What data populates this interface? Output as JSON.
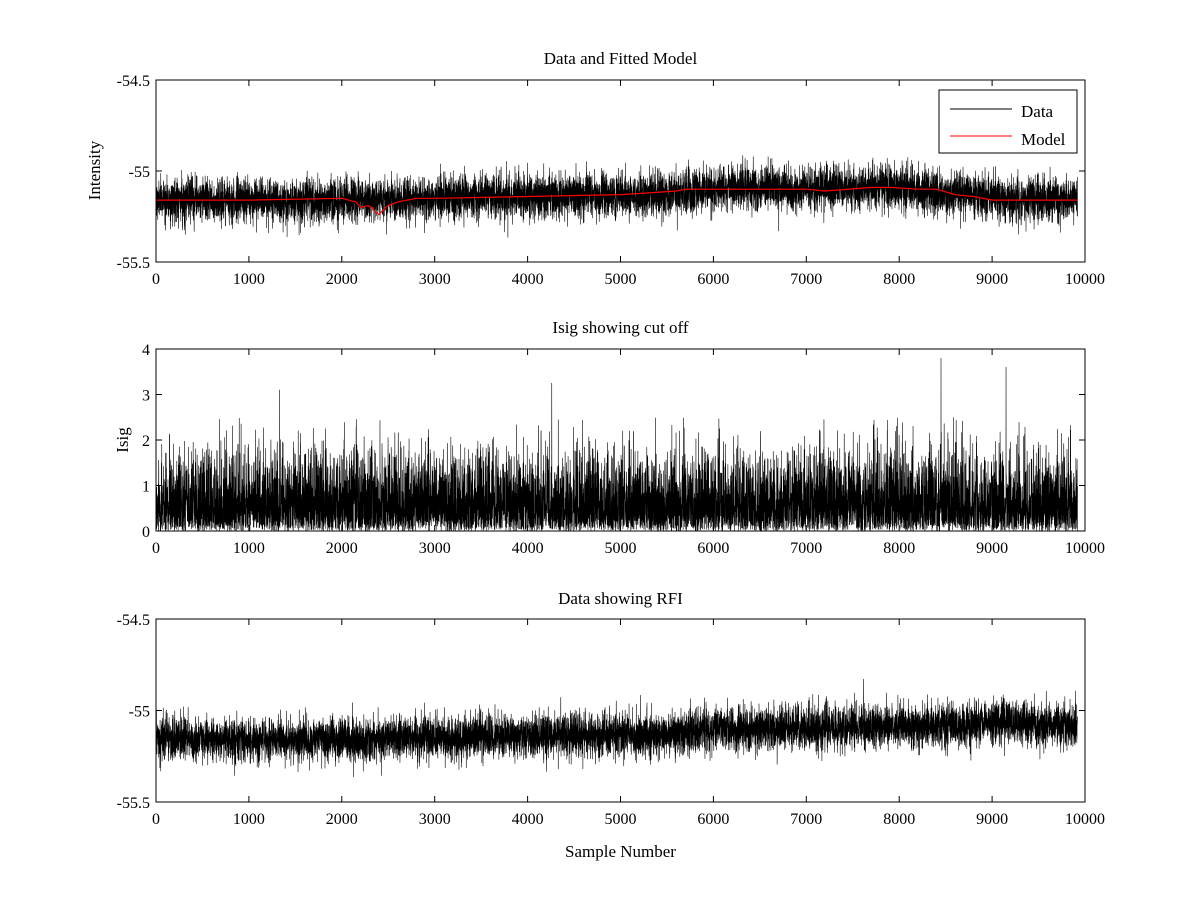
{
  "figure": {
    "background": "#ffffff"
  },
  "chart_data": [
    {
      "type": "line",
      "title": "Data and Fitted Model",
      "xlabel": "",
      "ylabel": "Intensity",
      "xlim": [
        0,
        10000
      ],
      "ylim": [
        -55.5,
        -54.5
      ],
      "xticks": [
        0,
        1000,
        2000,
        3000,
        4000,
        5000,
        6000,
        7000,
        8000,
        9000,
        10000
      ],
      "xtick_labels": [
        "0",
        "1000",
        "2000",
        "3000",
        "4000",
        "5000",
        "6000",
        "7000",
        "8000",
        "9000",
        "10000"
      ],
      "yticks": [
        -55.5,
        -55,
        -54.5
      ],
      "ytick_labels": [
        "-55.5",
        "-55",
        "-54.5"
      ],
      "grid": false,
      "legend": {
        "placement": "top-right",
        "entries": [
          "Data",
          "Model"
        ]
      },
      "series": [
        {
          "name": "Data",
          "color": "#000000",
          "kind": "noise",
          "n_samples": 9920,
          "baseline": {
            "x": [
              0,
              2000,
              4000,
              5400,
              6000,
              8000,
              9000,
              9920
            ],
            "y": [
              -55.16,
              -55.16,
              -55.14,
              -55.13,
              -55.1,
              -55.09,
              -55.15,
              -55.16
            ]
          },
          "noise_sd": 0.06,
          "typical_range": [
            -55.45,
            -54.85
          ]
        },
        {
          "name": "Model",
          "color": "#ff0000",
          "x": [
            0,
            1000,
            2000,
            2150,
            2200,
            2280,
            2320,
            2350,
            2400,
            2450,
            2500,
            2600,
            2800,
            3000,
            4000,
            5000,
            5300,
            5600,
            5700,
            6000,
            7000,
            7200,
            7700,
            7900,
            8200,
            8400,
            8600,
            8800,
            9000,
            9200,
            9920
          ],
          "y": [
            -55.16,
            -55.16,
            -55.15,
            -55.17,
            -55.2,
            -55.19,
            -55.2,
            -55.22,
            -55.24,
            -55.21,
            -55.19,
            -55.17,
            -55.15,
            -55.15,
            -55.14,
            -55.13,
            -55.12,
            -55.11,
            -55.1,
            -55.1,
            -55.1,
            -55.11,
            -55.09,
            -55.09,
            -55.1,
            -55.1,
            -55.13,
            -55.14,
            -55.16,
            -55.16,
            -55.16
          ]
        }
      ]
    },
    {
      "type": "line",
      "title": "Isig showing cut off",
      "xlabel": "",
      "ylabel": "Isig",
      "xlim": [
        0,
        10000
      ],
      "ylim": [
        0,
        4
      ],
      "xticks": [
        0,
        1000,
        2000,
        3000,
        4000,
        5000,
        6000,
        7000,
        8000,
        9000,
        10000
      ],
      "xtick_labels": [
        "0",
        "1000",
        "2000",
        "3000",
        "4000",
        "5000",
        "6000",
        "7000",
        "8000",
        "9000",
        "10000"
      ],
      "yticks": [
        0,
        1,
        2,
        3,
        4
      ],
      "ytick_labels": [
        "0",
        "1",
        "2",
        "3",
        "4"
      ],
      "grid": false,
      "series": [
        {
          "color": "#000000",
          "kind": "abs-noise",
          "n_samples": 9920,
          "noise_sd": 0.8,
          "typical_range": [
            0,
            2.5
          ],
          "notable_peaks": [
            {
              "x": 1330,
              "y": 3.1
            },
            {
              "x": 4260,
              "y": 3.25
            },
            {
              "x": 8450,
              "y": 3.8
            },
            {
              "x": 9150,
              "y": 3.6
            }
          ]
        }
      ]
    },
    {
      "type": "line",
      "title": "Data showing RFI",
      "xlabel": "Sample Number",
      "ylabel": "",
      "xlim": [
        0,
        10000
      ],
      "ylim": [
        -55.5,
        -54.5
      ],
      "xticks": [
        0,
        1000,
        2000,
        3000,
        4000,
        5000,
        6000,
        7000,
        8000,
        9000,
        10000
      ],
      "xtick_labels": [
        "0",
        "1000",
        "2000",
        "3000",
        "4000",
        "5000",
        "6000",
        "7000",
        "8000",
        "9000",
        "10000"
      ],
      "yticks": [
        -55.5,
        -55,
        -54.5
      ],
      "ytick_labels": [
        "-55.5",
        "-55",
        "-54.5"
      ],
      "grid": false,
      "series": [
        {
          "color": "#000000",
          "kind": "noise",
          "n_samples": 9920,
          "baseline": {
            "x": [
              0,
              2000,
              4000,
              5400,
              6000,
              8000,
              9000,
              9920
            ],
            "y": [
              -55.16,
              -55.16,
              -55.14,
              -55.13,
              -55.1,
              -55.09,
              -55.07,
              -55.08
            ]
          },
          "noise_sd": 0.06,
          "typical_range": [
            -55.45,
            -54.72
          ]
        }
      ]
    }
  ]
}
